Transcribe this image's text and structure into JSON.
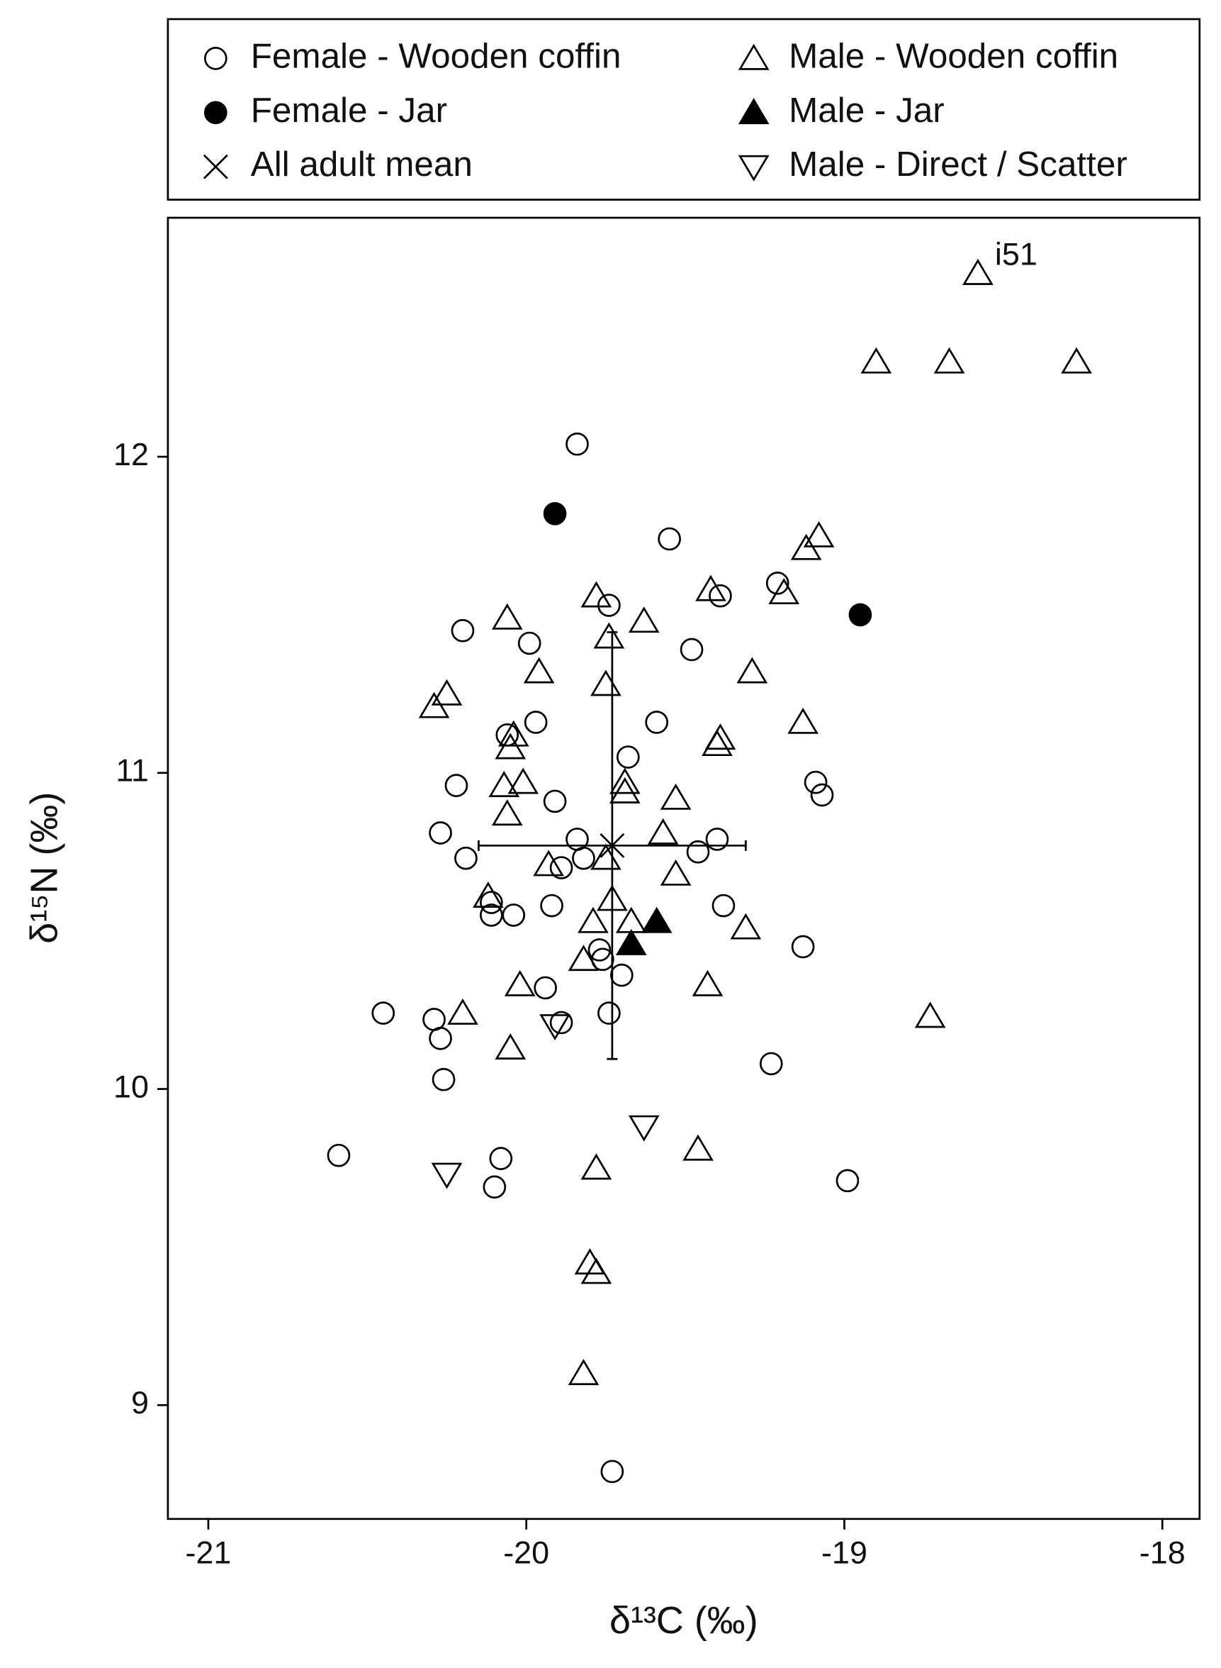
{
  "chart_data": {
    "type": "scatter",
    "x_label": "δ¹³C (‰)",
    "y_label": "δ¹⁵N (‰)",
    "xlim": [
      -21.127,
      -17.883
    ],
    "ylim": [
      8.64,
      12.756
    ],
    "xticks": [
      -21,
      -20,
      -19,
      -18
    ],
    "yticks": [
      9,
      10,
      11,
      12
    ],
    "grid": false,
    "legend": "top",
    "annotations": [
      {
        "text": "i51"
      }
    ],
    "series": [
      {
        "name": "Female - Wooden coffin",
        "marker": "circle",
        "filled": false,
        "color": "#000000",
        "x": [
          -19.84,
          -19.55,
          -19.21,
          -19.39,
          -19.74,
          -20.2,
          -19.99,
          -19.48,
          -19.97,
          -19.59,
          -20.06,
          -19.68,
          -20.22,
          -19.09,
          -19.07,
          -19.91,
          -20.27,
          -19.84,
          -19.4,
          -19.46,
          -20.19,
          -19.82,
          -19.89,
          -20.11,
          -19.92,
          -19.38,
          -20.11,
          -20.04,
          -19.13,
          -19.77,
          -19.76,
          -19.7,
          -19.94,
          -20.45,
          -19.74,
          -20.29,
          -19.89,
          -20.27,
          -19.23,
          -20.26,
          -20.59,
          -20.08,
          -18.99,
          -20.1,
          -19.73
        ],
        "values": [
          12.04,
          11.74,
          11.6,
          11.56,
          11.53,
          11.45,
          11.41,
          11.39,
          11.16,
          11.16,
          11.12,
          11.05,
          10.96,
          10.97,
          10.93,
          10.91,
          10.81,
          10.79,
          10.79,
          10.75,
          10.73,
          10.73,
          10.7,
          10.59,
          10.58,
          10.58,
          10.55,
          10.55,
          10.45,
          10.44,
          10.41,
          10.36,
          10.32,
          10.24,
          10.24,
          10.22,
          10.21,
          10.16,
          10.08,
          10.03,
          9.79,
          9.78,
          9.71,
          9.69,
          8.79
        ]
      },
      {
        "name": "Female - Jar",
        "marker": "circle",
        "filled": true,
        "color": "#000000",
        "x": [
          -19.91,
          -18.95
        ],
        "values": [
          11.82,
          11.5
        ]
      },
      {
        "name": "All adult mean",
        "marker": "x",
        "filled": false,
        "color": "#000000",
        "x": [
          -19.73
        ],
        "values": [
          10.77
        ],
        "x_error": [
          0.42
        ],
        "y_error": [
          0.675
        ]
      },
      {
        "name": "Male - Wooden coffin",
        "marker": "triangle",
        "filled": false,
        "color": "#000000",
        "x": [
          -18.58,
          -18.9,
          -18.67,
          -18.27,
          -19.08,
          -19.12,
          -19.19,
          -19.42,
          -19.78,
          -20.06,
          -19.63,
          -19.74,
          -19.96,
          -19.29,
          -19.75,
          -20.25,
          -20.29,
          -19.13,
          -19.39,
          -19.4,
          -20.04,
          -20.05,
          -20.01,
          -20.07,
          -19.69,
          -19.69,
          -19.53,
          -20.06,
          -19.75,
          -19.57,
          -19.93,
          -19.53,
          -20.12,
          -19.73,
          -19.79,
          -19.67,
          -19.31,
          -19.82,
          -20.02,
          -19.43,
          -20.2,
          -18.73,
          -20.05,
          -19.46,
          -19.78,
          -19.8,
          -19.78,
          -19.82
        ],
        "values": [
          12.58,
          12.3,
          12.3,
          12.3,
          11.75,
          11.71,
          11.57,
          11.58,
          11.56,
          11.49,
          11.48,
          11.43,
          11.32,
          11.32,
          11.28,
          11.25,
          11.21,
          11.16,
          11.11,
          11.09,
          11.12,
          11.08,
          10.97,
          10.96,
          10.97,
          10.94,
          10.92,
          10.87,
          10.73,
          10.81,
          10.71,
          10.68,
          10.61,
          10.6,
          10.53,
          10.53,
          10.51,
          10.41,
          10.33,
          10.33,
          10.24,
          10.23,
          10.13,
          9.81,
          9.75,
          9.45,
          9.42,
          9.1
        ]
      },
      {
        "name": "Male - Jar",
        "marker": "triangle",
        "filled": true,
        "color": "#000000",
        "x": [
          -19.67,
          -19.59
        ],
        "values": [
          10.46,
          10.53
        ]
      },
      {
        "name": "Male - Direct / Scatter",
        "marker": "triangle-down",
        "filled": false,
        "color": "#000000",
        "x": [
          -20.25,
          -19.63,
          -19.91
        ],
        "values": [
          9.73,
          9.88,
          10.2
        ]
      }
    ]
  }
}
